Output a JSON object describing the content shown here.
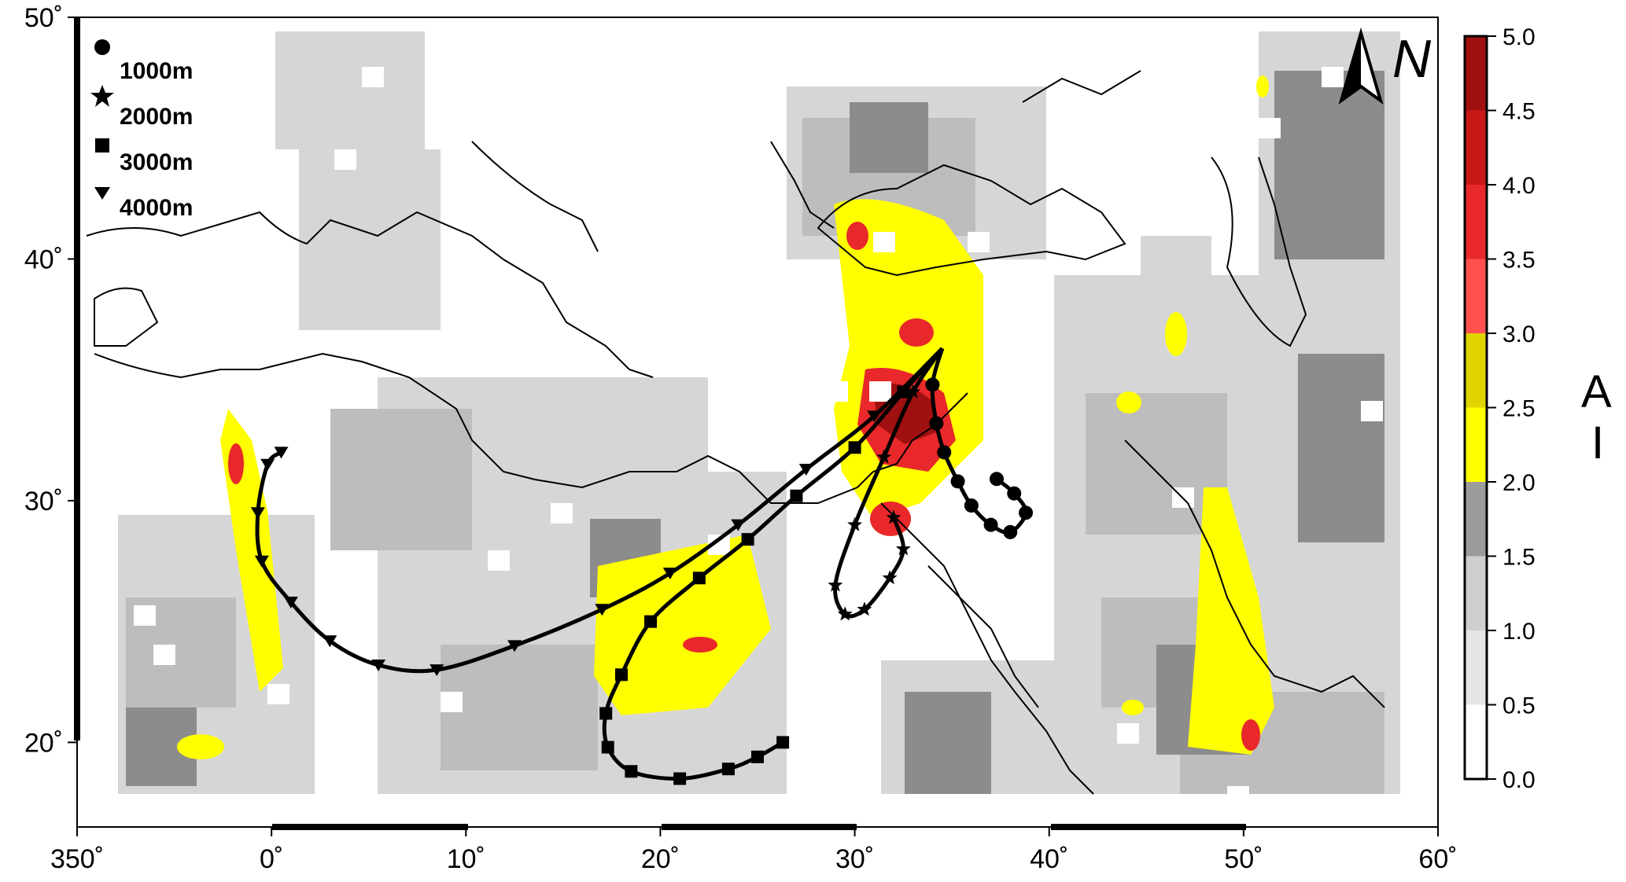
{
  "map": {
    "lon_ticks": [
      {
        "lon": -10,
        "label": "350˚"
      },
      {
        "lon": 0,
        "label": "0˚"
      },
      {
        "lon": 10,
        "label": "10˚"
      },
      {
        "lon": 20,
        "label": "20˚"
      },
      {
        "lon": 30,
        "label": "30˚"
      },
      {
        "lon": 40,
        "label": "40˚"
      },
      {
        "lon": 50,
        "label": "50˚"
      },
      {
        "lon": 60,
        "label": "60˚"
      }
    ],
    "lat_ticks": [
      {
        "lat": 50,
        "label": "50˚"
      },
      {
        "lat": 40,
        "label": "40˚"
      },
      {
        "lat": 30,
        "label": "30˚"
      },
      {
        "lat": 20,
        "label": "20˚"
      }
    ],
    "lon_range": [
      -10,
      60
    ],
    "lat_range": [
      16.5,
      50
    ]
  },
  "legend": {
    "items": [
      {
        "symbol": "circle",
        "label": "1000m"
      },
      {
        "symbol": "star",
        "label": "2000m"
      },
      {
        "symbol": "square",
        "label": "3000m"
      },
      {
        "symbol": "triangle-down",
        "label": "4000m"
      }
    ]
  },
  "north_arrow": {
    "label": "N"
  },
  "colorbar": {
    "title_line1": "A",
    "title_line2": "I",
    "range": [
      0,
      5
    ],
    "ticks": [
      "0.0",
      "0.5",
      "1.0",
      "1.5",
      "2.0",
      "2.5",
      "3.0",
      "3.5",
      "4.0",
      "4.5",
      "5.0"
    ],
    "colors": {
      "0.0-0.5": "#ffffff",
      "0.5-1.0": "#e6e6e6",
      "1.0-1.5": "#cfcfcf",
      "1.5-2.0": "#9c9c9c",
      "2.0-2.5": "#ffff00",
      "2.5-3.0": "#e0d400",
      "3.0-3.5": "#ff5050",
      "3.5-4.0": "#e8282a",
      "4.0-4.5": "#c81818",
      "4.5-5.0": "#a01010"
    }
  },
  "trajectories": [
    {
      "level": "1000m",
      "symbol": "circle",
      "points": [
        [
          34.5,
          36.3
        ],
        [
          34.0,
          34.8
        ],
        [
          34.2,
          33.2
        ],
        [
          34.6,
          32.0
        ],
        [
          35.3,
          30.8
        ],
        [
          36.0,
          29.8
        ],
        [
          37.0,
          29.0
        ],
        [
          38.0,
          28.7
        ],
        [
          38.8,
          29.5
        ],
        [
          38.2,
          30.3
        ],
        [
          37.3,
          30.9
        ]
      ]
    },
    {
      "level": "2000m",
      "symbol": "star",
      "points": [
        [
          34.5,
          36.3
        ],
        [
          33.0,
          34.5
        ],
        [
          31.5,
          31.8
        ],
        [
          30.0,
          29.0
        ],
        [
          29.0,
          26.5
        ],
        [
          29.5,
          25.3
        ],
        [
          30.5,
          25.5
        ],
        [
          31.8,
          26.8
        ],
        [
          32.5,
          28.0
        ],
        [
          32.0,
          29.3
        ]
      ]
    },
    {
      "level": "3000m",
      "symbol": "square",
      "points": [
        [
          34.5,
          36.3
        ],
        [
          32.5,
          34.5
        ],
        [
          30.0,
          32.2
        ],
        [
          27.0,
          30.2
        ],
        [
          24.5,
          28.4
        ],
        [
          22.0,
          26.8
        ],
        [
          19.5,
          25.0
        ],
        [
          18.0,
          22.8
        ],
        [
          17.2,
          21.2
        ],
        [
          17.3,
          19.8
        ],
        [
          18.5,
          18.8
        ],
        [
          21.0,
          18.5
        ],
        [
          23.5,
          18.9
        ],
        [
          25.0,
          19.4
        ],
        [
          26.3,
          20.0
        ]
      ]
    },
    {
      "level": "4000m",
      "symbol": "triangle-down",
      "points": [
        [
          34.5,
          36.3
        ],
        [
          31.0,
          33.5
        ],
        [
          27.5,
          31.3
        ],
        [
          24.0,
          29.0
        ],
        [
          20.5,
          27.0
        ],
        [
          17.0,
          25.5
        ],
        [
          12.5,
          24.0
        ],
        [
          8.5,
          23.0
        ],
        [
          5.5,
          23.2
        ],
        [
          3.0,
          24.2
        ],
        [
          1.0,
          25.8
        ],
        [
          -0.5,
          27.5
        ],
        [
          -0.7,
          29.5
        ],
        [
          -0.2,
          31.5
        ],
        [
          0.5,
          32.0
        ]
      ]
    }
  ]
}
